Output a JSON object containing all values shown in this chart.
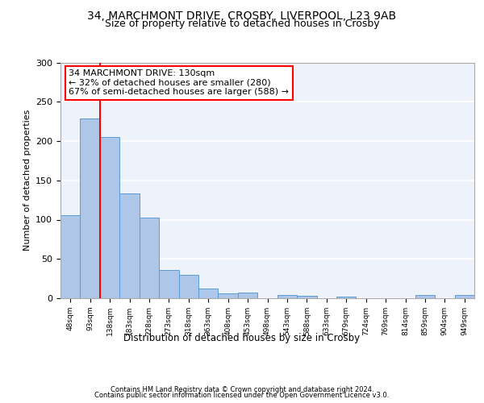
{
  "title1": "34, MARCHMONT DRIVE, CROSBY, LIVERPOOL, L23 9AB",
  "title2": "Size of property relative to detached houses in Crosby",
  "xlabel": "Distribution of detached houses by size in Crosby",
  "ylabel": "Number of detached properties",
  "footer1": "Contains HM Land Registry data © Crown copyright and database right 2024.",
  "footer2": "Contains public sector information licensed under the Open Government Licence v3.0.",
  "annotation_line1": "34 MARCHMONT DRIVE: 130sqm",
  "annotation_line2": "← 32% of detached houses are smaller (280)",
  "annotation_line3": "67% of semi-detached houses are larger (588) →",
  "bar_labels": [
    "48sqm",
    "93sqm",
    "138sqm",
    "183sqm",
    "228sqm",
    "273sqm",
    "318sqm",
    "363sqm",
    "408sqm",
    "453sqm",
    "498sqm",
    "543sqm",
    "588sqm",
    "633sqm",
    "679sqm",
    "724sqm",
    "769sqm",
    "814sqm",
    "859sqm",
    "904sqm",
    "949sqm"
  ],
  "bar_values": [
    106,
    229,
    205,
    133,
    103,
    36,
    30,
    12,
    6,
    7,
    0,
    4,
    3,
    0,
    2,
    0,
    0,
    0,
    4,
    0,
    4
  ],
  "bar_color": "#aec6e8",
  "bar_edge_color": "#5b9bd5",
  "vline_x": 1.5,
  "vline_color": "red",
  "ylim": [
    0,
    300
  ],
  "yticks": [
    0,
    50,
    100,
    150,
    200,
    250,
    300
  ],
  "bg_color": "#eef2fa",
  "grid_color": "#ffffff",
  "title1_fontsize": 10,
  "title2_fontsize": 9,
  "annotation_fontsize": 8,
  "footer_fontsize": 6,
  "ylabel_fontsize": 8,
  "xlabel_fontsize": 8.5,
  "ytick_fontsize": 8,
  "xtick_fontsize": 6.5
}
